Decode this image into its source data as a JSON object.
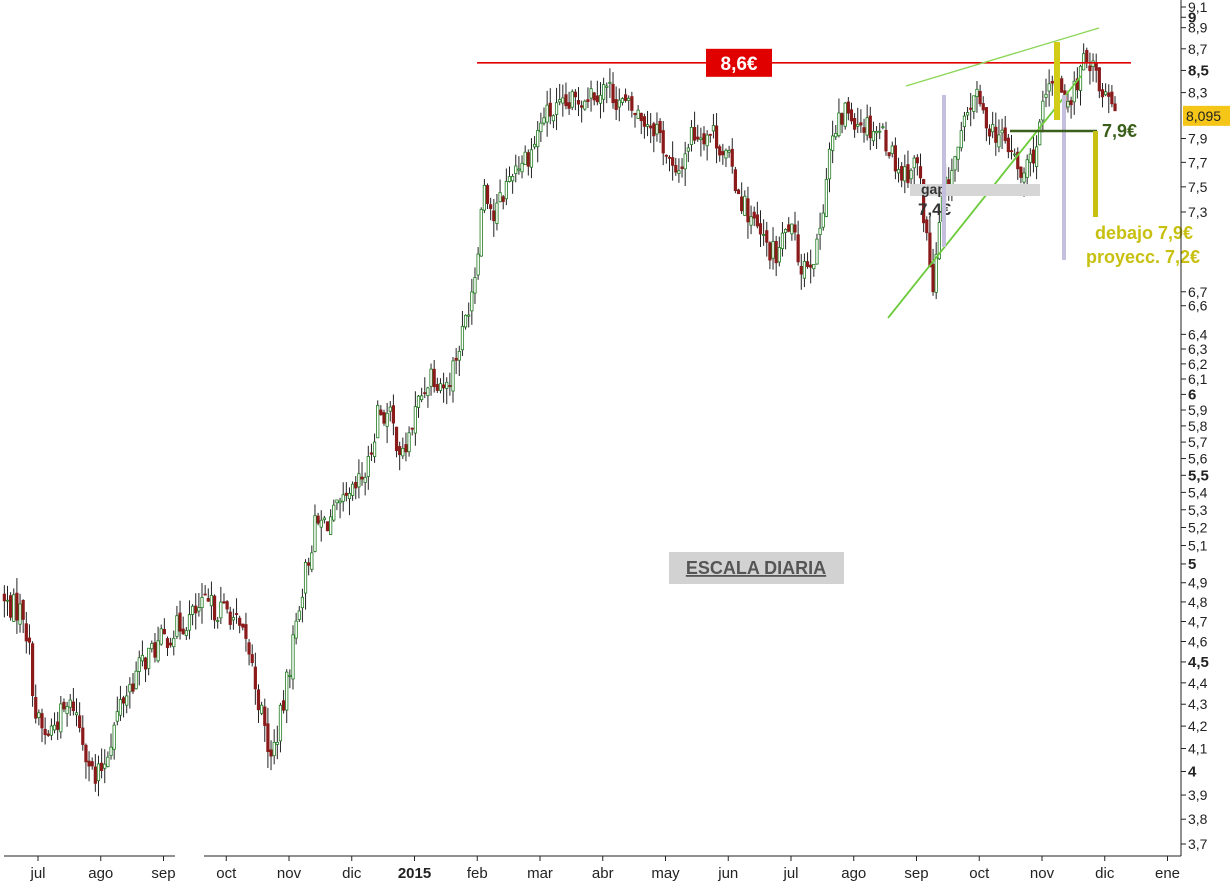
{
  "chart_data": {
    "type": "candlestick",
    "title": "",
    "watermark": "ESCALA DIARIA",
    "y_scale": "log",
    "ylim": [
      3.65,
      9.12
    ],
    "y_ticks": [
      {
        "v": 9.1,
        "label": "9,1",
        "major": false
      },
      {
        "v": 9.0,
        "label": "9",
        "major": true
      },
      {
        "v": 8.9,
        "label": "8,9",
        "major": false
      },
      {
        "v": 8.7,
        "label": "8,7",
        "major": false
      },
      {
        "v": 8.5,
        "label": "8,5",
        "major": true
      },
      {
        "v": 8.3,
        "label": "8,3",
        "major": false
      },
      {
        "v": 7.9,
        "label": "7,9",
        "major": false
      },
      {
        "v": 7.7,
        "label": "7,7",
        "major": false
      },
      {
        "v": 7.5,
        "label": "7,5",
        "major": false
      },
      {
        "v": 7.3,
        "label": "7,3",
        "major": false
      },
      {
        "v": 6.7,
        "label": "6,7",
        "major": false
      },
      {
        "v": 6.6,
        "label": "6,6",
        "major": false
      },
      {
        "v": 6.4,
        "label": "6,4",
        "major": false
      },
      {
        "v": 6.3,
        "label": "6,3",
        "major": false
      },
      {
        "v": 6.2,
        "label": "6,2",
        "major": false
      },
      {
        "v": 6.1,
        "label": "6,1",
        "major": false
      },
      {
        "v": 6.0,
        "label": "6",
        "major": true
      },
      {
        "v": 5.9,
        "label": "5,9",
        "major": false
      },
      {
        "v": 5.8,
        "label": "5,8",
        "major": false
      },
      {
        "v": 5.7,
        "label": "5,7",
        "major": false
      },
      {
        "v": 5.6,
        "label": "5,6",
        "major": false
      },
      {
        "v": 5.5,
        "label": "5,5",
        "major": true
      },
      {
        "v": 5.4,
        "label": "5,4",
        "major": false
      },
      {
        "v": 5.3,
        "label": "5,3",
        "major": false
      },
      {
        "v": 5.2,
        "label": "5,2",
        "major": false
      },
      {
        "v": 5.1,
        "label": "5,1",
        "major": false
      },
      {
        "v": 5.0,
        "label": "5",
        "major": true
      },
      {
        "v": 4.9,
        "label": "4,9",
        "major": false
      },
      {
        "v": 4.8,
        "label": "4,8",
        "major": false
      },
      {
        "v": 4.7,
        "label": "4,7",
        "major": false
      },
      {
        "v": 4.6,
        "label": "4,6",
        "major": false
      },
      {
        "v": 4.5,
        "label": "4,5",
        "major": true
      },
      {
        "v": 4.4,
        "label": "4,4",
        "major": false
      },
      {
        "v": 4.3,
        "label": "4,3",
        "major": false
      },
      {
        "v": 4.2,
        "label": "4,2",
        "major": false
      },
      {
        "v": 4.1,
        "label": "4,1",
        "major": false
      },
      {
        "v": 4.0,
        "label": "4",
        "major": true
      },
      {
        "v": 3.9,
        "label": "3,9",
        "major": false
      },
      {
        "v": 3.8,
        "label": "3,8",
        "major": false
      },
      {
        "v": 3.7,
        "label": "3,7",
        "major": false
      }
    ],
    "current_price": {
      "v": 8.095,
      "label": "8,095",
      "color": "#f5c518"
    },
    "x_ticks": [
      {
        "m": 1,
        "label": "jul"
      },
      {
        "m": 2,
        "label": "ago"
      },
      {
        "m": 3,
        "label": "sep"
      },
      {
        "m": 4,
        "label": "oct"
      },
      {
        "m": 5,
        "label": "nov"
      },
      {
        "m": 6,
        "label": "dic"
      },
      {
        "m": 7,
        "label": "2015",
        "year": true
      },
      {
        "m": 8,
        "label": "feb"
      },
      {
        "m": 9,
        "label": "mar"
      },
      {
        "m": 10,
        "label": "abr"
      },
      {
        "m": 11,
        "label": "may"
      },
      {
        "m": 12,
        "label": "jun"
      },
      {
        "m": 13,
        "label": "jul"
      },
      {
        "m": 14,
        "label": "ago"
      },
      {
        "m": 15,
        "label": "sep"
      },
      {
        "m": 16,
        "label": "oct"
      },
      {
        "m": 17,
        "label": "nov"
      },
      {
        "m": 18,
        "label": "dic"
      },
      {
        "m": 19,
        "label": "ene"
      }
    ],
    "price_path": [
      [
        0.0,
        4.85
      ],
      [
        0.35,
        4.8
      ],
      [
        0.7,
        4.75
      ],
      [
        0.8,
        4.55
      ],
      [
        0.9,
        4.25
      ],
      [
        1.05,
        4.15
      ],
      [
        1.3,
        4.25
      ],
      [
        1.5,
        4.3
      ],
      [
        1.65,
        4.15
      ],
      [
        1.85,
        3.95
      ],
      [
        2.0,
        4.05
      ],
      [
        2.25,
        4.3
      ],
      [
        2.6,
        4.5
      ],
      [
        2.9,
        4.6
      ],
      [
        3.2,
        4.68
      ],
      [
        3.6,
        4.78
      ],
      [
        4.0,
        4.75
      ],
      [
        4.3,
        4.55
      ],
      [
        4.5,
        4.25
      ],
      [
        4.65,
        4.05
      ],
      [
        4.85,
        4.3
      ],
      [
        5.1,
        4.8
      ],
      [
        5.35,
        5.2
      ],
      [
        5.6,
        5.25
      ],
      [
        5.9,
        5.35
      ],
      [
        6.2,
        5.55
      ],
      [
        6.35,
        5.9
      ],
      [
        6.55,
        5.85
      ],
      [
        6.75,
        5.6
      ],
      [
        7.0,
        5.95
      ],
      [
        7.2,
        6.15
      ],
      [
        7.45,
        6.05
      ],
      [
        7.7,
        6.4
      ],
      [
        7.9,
        6.85
      ],
      [
        8.05,
        7.55
      ],
      [
        8.2,
        7.25
      ],
      [
        8.5,
        7.65
      ],
      [
        8.8,
        7.8
      ],
      [
        9.0,
        8.1
      ],
      [
        9.3,
        8.15
      ],
      [
        9.7,
        8.3
      ],
      [
        10.0,
        8.35
      ],
      [
        10.25,
        8.2
      ],
      [
        10.5,
        8.1
      ],
      [
        10.8,
        8.0
      ],
      [
        11.1,
        7.55
      ],
      [
        11.35,
        7.95
      ],
      [
        11.7,
        7.95
      ],
      [
        11.95,
        7.7
      ],
      [
        12.15,
        7.4
      ],
      [
        12.45,
        7.1
      ],
      [
        12.7,
        6.95
      ],
      [
        12.9,
        7.2
      ],
      [
        13.1,
        6.9
      ],
      [
        13.35,
        7.0
      ],
      [
        13.55,
        7.8
      ],
      [
        13.8,
        8.15
      ],
      [
        14.05,
        8.05
      ],
      [
        14.4,
        7.95
      ],
      [
        14.7,
        7.6
      ],
      [
        14.95,
        7.7
      ],
      [
        15.05,
        7.3
      ],
      [
        15.2,
        6.7
      ],
      [
        15.35,
        7.4
      ],
      [
        15.6,
        7.8
      ],
      [
        15.85,
        8.3
      ],
      [
        16.0,
        8.1
      ],
      [
        16.2,
        7.95
      ],
      [
        16.45,
        7.8
      ],
      [
        16.6,
        7.55
      ],
      [
        16.85,
        7.85
      ],
      [
        17.0,
        8.25
      ],
      [
        17.2,
        8.45
      ],
      [
        17.35,
        8.15
      ],
      [
        17.55,
        8.5
      ],
      [
        17.75,
        8.65
      ],
      [
        17.85,
        8.3
      ],
      [
        18.0,
        8.35
      ],
      [
        18.15,
        8.1
      ]
    ],
    "annotations": {
      "resistance": {
        "v": 8.57,
        "from_m": 7.1,
        "to_m": 18.55,
        "label": "8,6€",
        "color": "#e00000"
      },
      "gap": {
        "label": "gap",
        "value_label": "7,4€",
        "v_low": 7.38,
        "v_high": 7.46,
        "from_m": 15.1,
        "to_m": 16.8
      },
      "support_flag": {
        "label": "7,9€",
        "v": 7.9,
        "color": "#3a5f1a"
      },
      "target": {
        "line1": "debajo 7,9€",
        "line2": "proyecc. 7,2€",
        "color": "#c8c010"
      }
    }
  }
}
